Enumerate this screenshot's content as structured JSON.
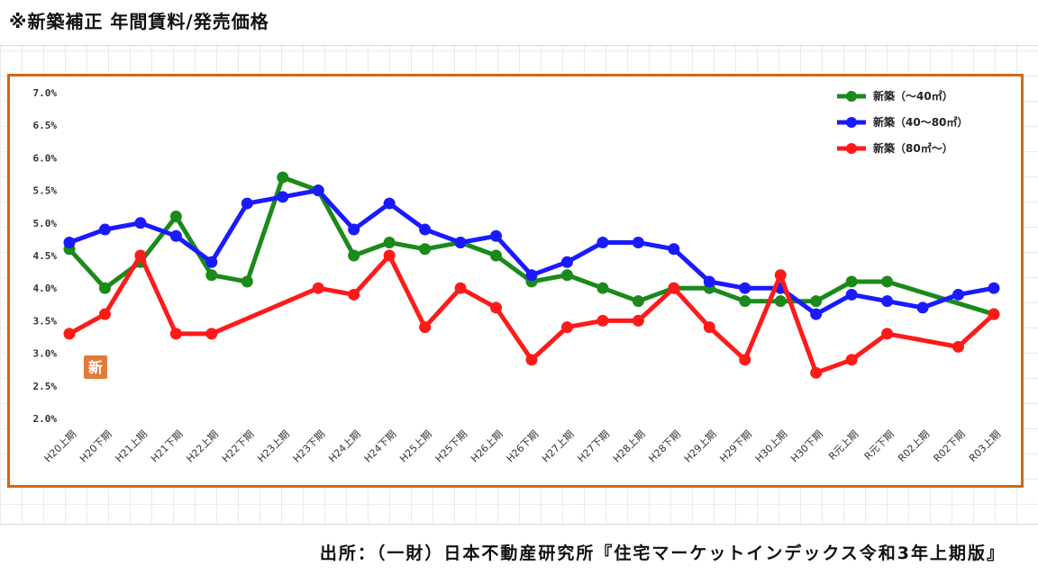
{
  "page": {
    "title": "※新築補正 年間賃料/発売価格",
    "source": "出所：（一財）日本不動産研究所『住宅マーケットインデックス令和3年上期版』"
  },
  "chart_data": {
    "type": "line",
    "title": "",
    "xlabel": "",
    "ylabel": "",
    "ylim": [
      2.0,
      7.0
    ],
    "yticks": [
      "2.0%",
      "2.5%",
      "3.0%",
      "3.5%",
      "4.0%",
      "4.5%",
      "5.0%",
      "5.5%",
      "6.0%",
      "6.5%",
      "7.0%"
    ],
    "grid": false,
    "legend_position": "top-right",
    "badge": "新",
    "categories": [
      "H20上期",
      "H20下期",
      "H21上期",
      "H21下期",
      "H22上期",
      "H22下期",
      "H23上期",
      "H23下期",
      "H24上期",
      "H24下期",
      "H25上期",
      "H25下期",
      "H26上期",
      "H26下期",
      "H27上期",
      "H27下期",
      "H28上期",
      "H28下期",
      "H29上期",
      "H29下期",
      "H30上期",
      "H30下期",
      "R元上期",
      "R元下期",
      "R02上期",
      "R02下期",
      "R03上期"
    ],
    "series": [
      {
        "name": "新築（～40㎡）",
        "color": "#1a8a1a",
        "values": [
          4.6,
          4.0,
          4.4,
          5.1,
          4.2,
          4.1,
          5.7,
          5.5,
          4.5,
          4.7,
          4.6,
          4.7,
          4.5,
          4.1,
          4.2,
          4.0,
          3.8,
          4.0,
          4.0,
          3.8,
          3.8,
          3.8,
          4.1,
          4.1,
          null,
          null,
          3.6
        ]
      },
      {
        "name": "新築（40～80㎡）",
        "color": "#1a1aff",
        "values": [
          4.7,
          4.9,
          5.0,
          4.8,
          4.4,
          5.3,
          5.4,
          5.5,
          4.9,
          5.3,
          4.9,
          4.7,
          4.8,
          4.2,
          4.4,
          4.7,
          4.7,
          4.6,
          4.1,
          4.0,
          4.0,
          3.6,
          3.9,
          3.8,
          3.7,
          3.9,
          4.0
        ]
      },
      {
        "name": "新築（80㎡～）",
        "color": "#ff1a1a",
        "values": [
          3.3,
          3.6,
          4.5,
          3.3,
          3.3,
          null,
          null,
          4.0,
          3.9,
          4.5,
          3.4,
          4.0,
          3.7,
          2.9,
          3.4,
          3.5,
          3.5,
          4.0,
          3.4,
          2.9,
          4.2,
          2.7,
          2.9,
          3.3,
          null,
          3.1,
          3.6
        ]
      }
    ]
  }
}
